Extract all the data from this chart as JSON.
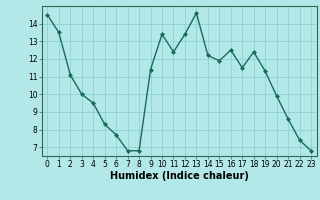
{
  "x": [
    0,
    1,
    2,
    3,
    4,
    5,
    6,
    7,
    8,
    9,
    10,
    11,
    12,
    13,
    14,
    15,
    16,
    17,
    18,
    19,
    20,
    21,
    22,
    23
  ],
  "y": [
    14.5,
    13.5,
    11.1,
    10.0,
    9.5,
    8.3,
    7.7,
    6.8,
    6.8,
    11.4,
    13.4,
    12.4,
    13.4,
    14.6,
    12.2,
    11.9,
    12.5,
    11.5,
    12.4,
    11.3,
    9.9,
    8.6,
    7.4,
    6.8
  ],
  "line_color": "#1a6b5a",
  "marker": "D",
  "marker_size": 2.0,
  "bg_color": "#b3e8e8",
  "grid_color": "#88cccc",
  "xlabel": "Humidex (Indice chaleur)",
  "xlim": [
    -0.5,
    23.5
  ],
  "ylim": [
    6.5,
    15.0
  ],
  "yticks": [
    7,
    8,
    9,
    10,
    11,
    12,
    13,
    14
  ],
  "xticks": [
    0,
    1,
    2,
    3,
    4,
    5,
    6,
    7,
    8,
    9,
    10,
    11,
    12,
    13,
    14,
    15,
    16,
    17,
    18,
    19,
    20,
    21,
    22,
    23
  ],
  "tick_fontsize": 5.5,
  "xlabel_fontsize": 7.0,
  "line_width": 1.0
}
